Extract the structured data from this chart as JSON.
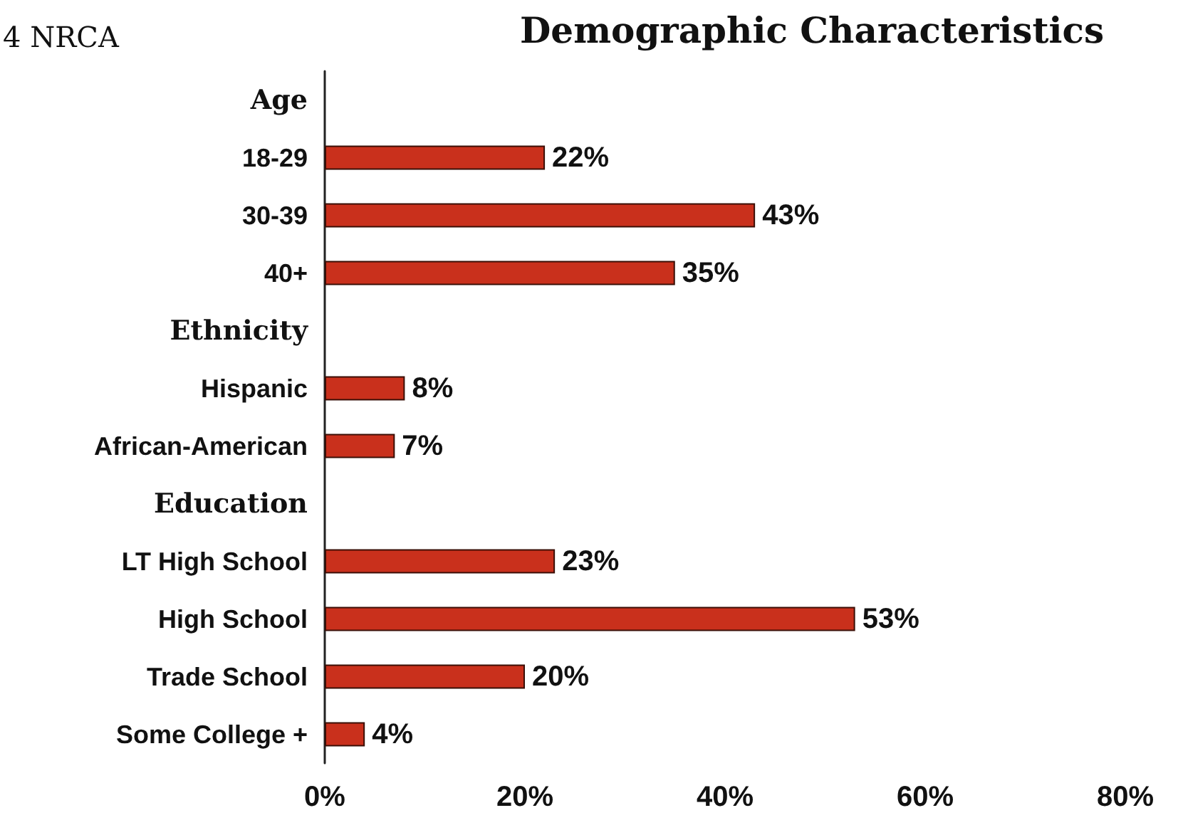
{
  "chart_data": {
    "type": "bar",
    "orientation": "horizontal",
    "title": "Demographic Characteristics",
    "annotations": [
      "4 NRCA"
    ],
    "categories": [
      "Age",
      "18-29",
      "30-39",
      "40+",
      "Ethnicity",
      "Hispanic",
      "African-American",
      "Education",
      "LT High School",
      "High School",
      "Trade School",
      "Some College +"
    ],
    "values": [
      null,
      22,
      43,
      35,
      null,
      8,
      7,
      null,
      23,
      53,
      20,
      4
    ],
    "value_labels": [
      null,
      "22%",
      "43%",
      "35%",
      null,
      "8%",
      "7%",
      null,
      "23%",
      "53%",
      "20%",
      "4%"
    ],
    "color": "#c9301c",
    "xlim": [
      0,
      80
    ],
    "xticks": [
      {
        "value": 0,
        "label": "0%"
      },
      {
        "value": 20,
        "label": "20%"
      },
      {
        "value": 40,
        "label": "40%"
      },
      {
        "value": 60,
        "label": "60%"
      },
      {
        "value": 80,
        "label": "80%"
      }
    ],
    "grid": false
  }
}
